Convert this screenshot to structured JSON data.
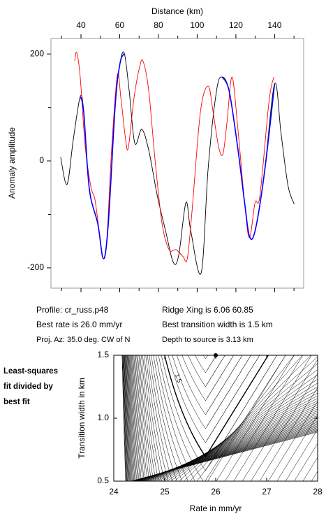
{
  "chart_data": [
    {
      "type": "line",
      "x_label": "Distance (km)",
      "y_label": "Anomaly amplitude",
      "xlim": [
        24.5,
        155
      ],
      "ylim": [
        -238,
        229
      ],
      "xticks": [
        40,
        60,
        80,
        100,
        120,
        140
      ],
      "yticks": [
        -200,
        0,
        200
      ],
      "series": [
        {
          "color": "#000000",
          "x": [
            29.5,
            32.8,
            36,
            39.6,
            41.4,
            44.3,
            48.7,
            51.6,
            54.1,
            57.7,
            60.2,
            62.4,
            64.9,
            67.8,
            71.4,
            75,
            79.4,
            83.7,
            87.7,
            90.5,
            94.2,
            96.7,
            102.1,
            105.7,
            110,
            112.9,
            116.5,
            120.9,
            124.5,
            127,
            129.9,
            134.6,
            140,
            143.3,
            146.9,
            150.1
          ],
          "values": [
            7,
            -44,
            39,
            120,
            92,
            -52,
            -118,
            -183,
            -118,
            105,
            183,
            201,
            131,
            33,
            59,
            20,
            -65,
            -131,
            -190,
            -176,
            -78,
            -131,
            -209,
            -13,
            131,
            157,
            131,
            26,
            -78,
            -141,
            -131,
            -26,
            144,
            52,
            -46,
            -81
          ]
        },
        {
          "color": "#ff0000",
          "x": [
            36.8,
            37.8,
            39.6,
            42.2,
            45.1,
            47.2,
            49.4,
            51.6,
            53.4,
            55.9,
            58.8,
            60.6,
            63.1,
            64.5,
            67.4,
            70.3,
            72.1,
            75,
            78.3,
            81.9,
            85.5,
            89.1,
            92.7,
            94.9,
            97.4,
            101.7,
            105.7,
            108.2,
            111.1,
            113.3,
            115.4,
            118,
            120.9,
            124.5,
            127,
            129.9,
            132.4,
            137.1,
            139.6
          ],
          "values": [
            187,
            203,
            157,
            26,
            -48,
            -72,
            -131,
            -183,
            -144,
            26,
            161,
            118,
            39,
            26,
            118,
            176,
            186,
            131,
            0,
            -118,
            -166,
            -166,
            -179,
            -183,
            -92,
            92,
            140,
            92,
            26,
            13,
            72,
            157,
            65,
            -78,
            -144,
            -78,
            -65,
            111,
            157
          ]
        },
        {
          "color": "#0000ff",
          "x": [
            39.6,
            41.4,
            44.3,
            48.7,
            51.6,
            54.1,
            57.7,
            60.2,
            62.4
          ],
          "values": [
            120,
            92,
            -52,
            -118,
            -183,
            -118,
            105,
            183,
            201
          ]
        },
        {
          "color": "#0000ff",
          "x": [
            112.9,
            116.5,
            120.9,
            124.5,
            127,
            129.9,
            134.6,
            140
          ],
          "values": [
            157,
            131,
            26,
            -78,
            -141,
            -131,
            -26,
            144
          ]
        }
      ]
    },
    {
      "type": "contour",
      "x_label": "Rate in mm/yr",
      "y_label": "Transition width in km",
      "xlim": [
        24,
        28
      ],
      "ylim": [
        0.5,
        1.5
      ],
      "xticks": [
        24,
        25,
        26,
        27,
        28
      ],
      "yticks": [
        {
          "value": 0.5,
          "label": "0.5"
        },
        {
          "value": 1.0,
          "label": "1.0"
        },
        {
          "value": 1.5,
          "label": "1.5"
        }
      ],
      "contour_label": "1.5",
      "best_fit": {
        "x": 26.0,
        "y": 1.5
      }
    }
  ],
  "info": {
    "left": [
      "Profile: cr_russ.p48",
      "Best rate is 26.0 mm/yr",
      "Proj. Az: 35.0 deg. CW of N"
    ],
    "right": [
      "Ridge Xing is 6.06 60.85",
      "Best transition width is 1.5 km",
      "Depth to source is   3.13 km"
    ]
  },
  "side_label": [
    "Least-squares",
    "fit divided by",
    "best fit"
  ]
}
